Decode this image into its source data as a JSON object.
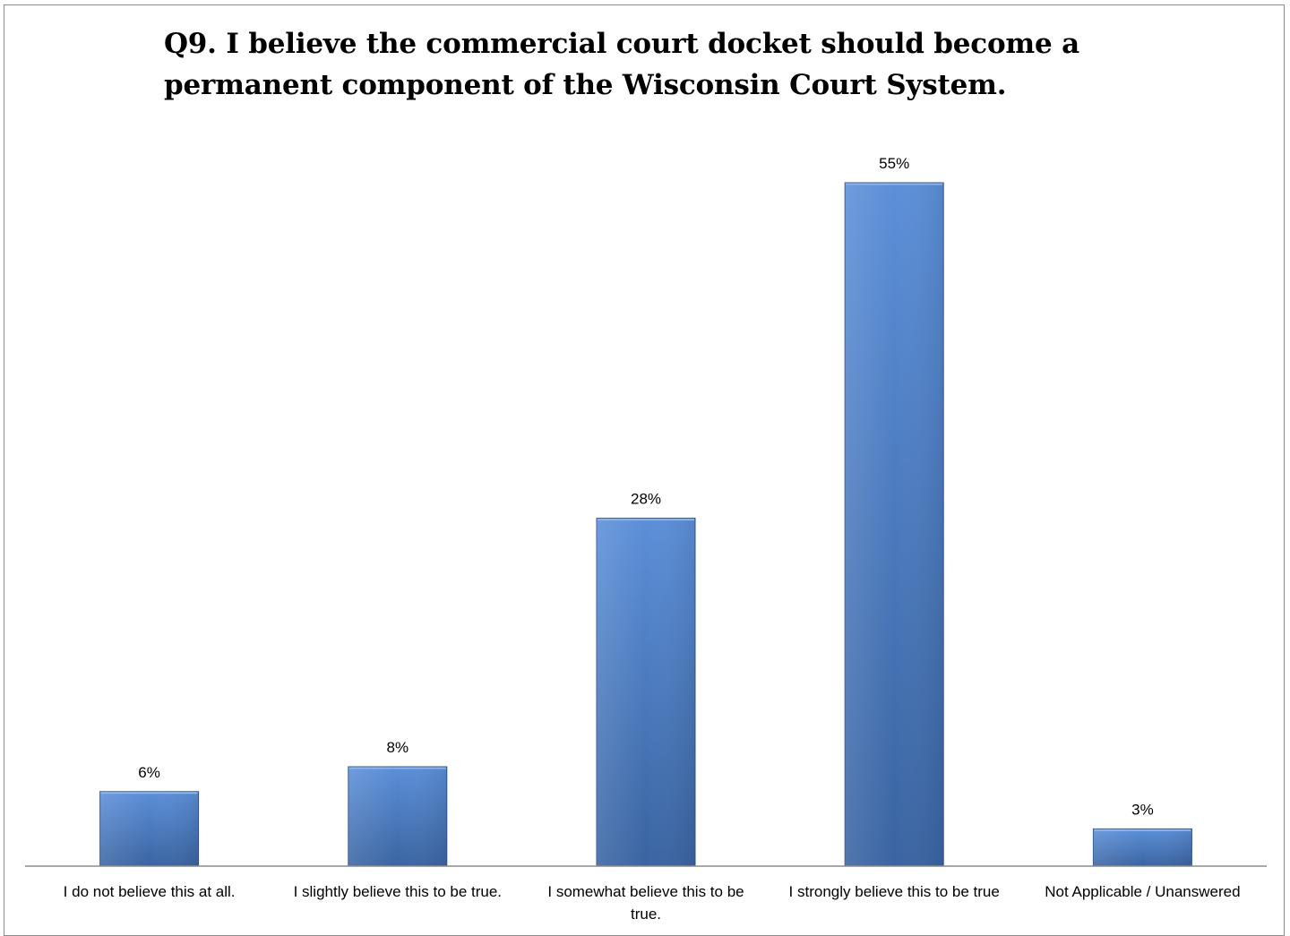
{
  "chart_data": {
    "type": "bar",
    "title": "Q9. I believe the commercial court docket should become a permanent component of the Wisconsin Court System.",
    "categories": [
      [
        "I do not believe this at all."
      ],
      [
        "I slightly believe this to be true."
      ],
      [
        "I somewhat believe this to be",
        "true."
      ],
      [
        "I strongly believe this to be true"
      ],
      [
        "Not Applicable / Unanswered"
      ]
    ],
    "values": [
      6,
      8,
      28,
      55,
      3
    ],
    "data_labels": [
      "6%",
      "8%",
      "28%",
      "55%",
      "3%"
    ],
    "ylim": [
      0,
      55
    ],
    "grid": false,
    "legend": "none",
    "colors": {
      "bar_light": "#5b8fd8",
      "bar_dark": "#3a64a2",
      "bar_edge": "#2f5590",
      "axis": "#8c8c8c"
    }
  }
}
